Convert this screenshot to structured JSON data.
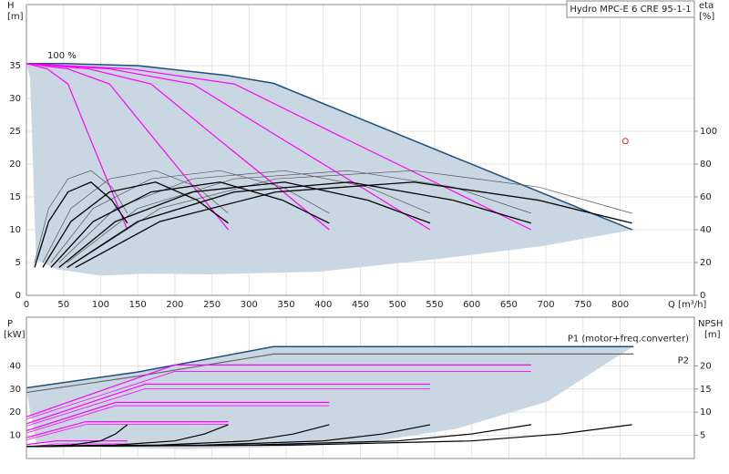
{
  "chart_data": [
    {
      "type": "line",
      "title": "Hydro MPC-E 6 CRE 95-1-1",
      "annotation": "100 %",
      "y_label": "H",
      "y_unit": "[m]",
      "y2_label": "eta",
      "y2_unit": "[%]",
      "x_label": "Q [m³/h]",
      "xlim": [
        0,
        900
      ],
      "xticks": [
        0,
        50,
        100,
        150,
        200,
        250,
        300,
        350,
        400,
        450,
        500,
        550,
        600,
        650,
        700,
        750,
        800
      ],
      "ylim": [
        0,
        44.3
      ],
      "yticks": [
        0,
        5,
        10,
        15,
        20,
        25,
        30,
        35
      ],
      "y2lim": [
        0,
        177.2
      ],
      "y2ticks": [
        0,
        20,
        40,
        60,
        80,
        100
      ],
      "grid": true,
      "area": {
        "color": "#c9d7e3",
        "x": [
          818,
          695,
          566,
          394,
          250,
          161,
          100,
          40,
          13,
          5
        ],
        "values": [
          10,
          7.5,
          5.7,
          3.6,
          3.2,
          3.3,
          3,
          4,
          5.4,
          33
        ]
      },
      "series": [
        {
          "color": "#1d4f7a",
          "width": 1.5,
          "x": [
            0,
            50,
            150,
            270,
            333,
            816
          ],
          "values": [
            35.3,
            35.3,
            35,
            33.5,
            32.3,
            10
          ]
        },
        {
          "color": "#ff00ff",
          "width": 1.2,
          "x": [
            0,
            28,
            56,
            84,
            112,
            136
          ],
          "values": [
            35.3,
            34.5,
            32.2,
            24.4,
            16.7,
            10
          ]
        },
        {
          "color": "#ff00ff",
          "width": 1.2,
          "x": [
            0,
            56,
            112,
            168,
            224,
            272
          ],
          "values": [
            35.3,
            34.5,
            32.2,
            24.4,
            16.7,
            10
          ]
        },
        {
          "color": "#ff00ff",
          "width": 1.2,
          "x": [
            0,
            84,
            168,
            252,
            336,
            408
          ],
          "values": [
            35.3,
            34.5,
            32.2,
            24.4,
            16.7,
            10
          ]
        },
        {
          "color": "#ff00ff",
          "width": 1.2,
          "x": [
            0,
            112,
            224,
            336,
            448,
            544
          ],
          "values": [
            35.3,
            34.5,
            32.2,
            24.4,
            16.7,
            10
          ]
        },
        {
          "color": "#ff00ff",
          "width": 1.2,
          "x": [
            0,
            140,
            280,
            420,
            560,
            680
          ],
          "values": [
            35.3,
            34.5,
            32.2,
            24.4,
            16.7,
            10
          ]
        },
        {
          "color": "#555555",
          "width": 0.7,
          "axis": "y2",
          "x": [
            11,
            30,
            56,
            87,
            115,
            136
          ],
          "values": [
            20,
            53,
            71,
            76,
            66,
            50
          ]
        },
        {
          "color": "#555555",
          "width": 0.7,
          "axis": "y2",
          "x": [
            22,
            60,
            112,
            174,
            230,
            272
          ],
          "values": [
            20,
            53,
            71,
            76,
            66,
            50
          ]
        },
        {
          "color": "#555555",
          "width": 0.7,
          "axis": "y2",
          "x": [
            33,
            90,
            168,
            261,
            345,
            408
          ],
          "values": [
            20,
            53,
            71,
            76,
            66,
            50
          ]
        },
        {
          "color": "#555555",
          "width": 0.7,
          "axis": "y2",
          "x": [
            44,
            120,
            224,
            348,
            460,
            544
          ],
          "values": [
            20,
            53,
            71,
            76,
            66,
            50
          ]
        },
        {
          "color": "#555555",
          "width": 0.7,
          "axis": "y2",
          "x": [
            55,
            150,
            280,
            435,
            575,
            680
          ],
          "values": [
            20,
            53,
            71,
            76,
            66,
            50
          ]
        },
        {
          "color": "#555555",
          "width": 0.7,
          "axis": "y2",
          "x": [
            66,
            180,
            336,
            522,
            690,
            816
          ],
          "values": [
            20,
            53,
            71,
            76,
            66,
            50
          ]
        },
        {
          "color": "#000000",
          "width": 1.3,
          "axis": "y2",
          "x": [
            11,
            30,
            56,
            87,
            115,
            136
          ],
          "values": [
            17,
            45,
            63,
            69,
            58,
            44
          ]
        },
        {
          "color": "#000000",
          "width": 1.3,
          "axis": "y2",
          "x": [
            22,
            60,
            112,
            174,
            230,
            272
          ],
          "values": [
            17,
            45,
            63,
            69,
            58,
            44
          ]
        },
        {
          "color": "#000000",
          "width": 1.3,
          "axis": "y2",
          "x": [
            33,
            90,
            168,
            261,
            345,
            408
          ],
          "values": [
            17,
            45,
            63,
            69,
            58,
            44
          ]
        },
        {
          "color": "#000000",
          "width": 1.3,
          "axis": "y2",
          "x": [
            44,
            120,
            224,
            348,
            460,
            544
          ],
          "values": [
            17,
            45,
            63,
            69,
            58,
            44
          ]
        },
        {
          "color": "#000000",
          "width": 1.3,
          "axis": "y2",
          "x": [
            55,
            150,
            280,
            435,
            575,
            680
          ],
          "values": [
            17,
            45,
            63,
            69,
            58,
            44
          ]
        },
        {
          "color": "#000000",
          "width": 1.3,
          "axis": "y2",
          "x": [
            66,
            180,
            336,
            522,
            690,
            816
          ],
          "values": [
            17,
            45,
            63,
            69,
            58,
            44
          ]
        }
      ],
      "point": {
        "x": 807,
        "y": 23.5,
        "color": "#e03030"
      }
    },
    {
      "type": "line",
      "y_label": "P",
      "y_unit": "[kW]",
      "y2_label": "NPSH",
      "y2_unit": "[m]",
      "xlim": [
        0,
        900
      ],
      "ylim": [
        0,
        61
      ],
      "yticks": [
        10,
        20,
        30,
        40
      ],
      "y2lim": [
        0,
        30.5
      ],
      "y2ticks": [
        5,
        10,
        15,
        20
      ],
      "grid": true,
      "area": {
        "color": "#c9d7e3",
        "x": [
          788,
          702,
          579,
          456,
          333,
          210,
          87,
          13.5,
          5
        ],
        "values": [
          42.4,
          24.6,
          12.8,
          6.8,
          4.9,
          4.1,
          4.9,
          6.8,
          20
        ]
      },
      "series": [
        {
          "name": "P1 (motor+freq.converter)",
          "color": "#1d4f7a",
          "width": 1.5,
          "x": [
            0,
            149,
            333,
            818
          ],
          "values": [
            30.5,
            37.3,
            48.3,
            48.3
          ]
        },
        {
          "name": "P2",
          "color": "#666666",
          "width": 1.2,
          "x": [
            0,
            149,
            333,
            818
          ],
          "values": [
            28.5,
            35.5,
            45.1,
            45.1
          ]
        },
        {
          "color": "#ff00ff",
          "width": 1.2,
          "x": [
            0,
            40,
            136
          ],
          "values": [
            6,
            7.6,
            7.6
          ]
        },
        {
          "color": "#ff00ff",
          "width": 0.8,
          "x": [
            0,
            40,
            136
          ],
          "values": [
            5,
            6.3,
            6.3
          ]
        },
        {
          "color": "#ff00ff",
          "width": 1.2,
          "x": [
            0,
            80,
            272
          ],
          "values": [
            9,
            15.9,
            15.9
          ]
        },
        {
          "color": "#ff00ff",
          "width": 0.8,
          "x": [
            0,
            80,
            272
          ],
          "values": [
            8,
            14.7,
            14.7
          ]
        },
        {
          "color": "#ff00ff",
          "width": 1.2,
          "x": [
            0,
            120,
            408
          ],
          "values": [
            12,
            24.2,
            24.2
          ]
        },
        {
          "color": "#ff00ff",
          "width": 0.8,
          "x": [
            0,
            120,
            408
          ],
          "values": [
            11,
            22.8,
            22.8
          ]
        },
        {
          "color": "#ff00ff",
          "width": 1.2,
          "x": [
            0,
            160,
            544
          ],
          "values": [
            15,
            32.1,
            32.1
          ]
        },
        {
          "color": "#ff00ff",
          "width": 0.8,
          "x": [
            0,
            160,
            544
          ],
          "values": [
            14,
            30.1,
            30.1
          ]
        },
        {
          "color": "#ff00ff",
          "width": 1.2,
          "x": [
            0,
            200,
            680
          ],
          "values": [
            18,
            40.4,
            40.4
          ]
        },
        {
          "color": "#ff00ff",
          "width": 0.8,
          "x": [
            0,
            200,
            680
          ],
          "values": [
            17,
            37.6,
            37.6
          ]
        },
        {
          "color": "#000000",
          "width": 1.2,
          "axis": "y2",
          "x": [
            0,
            60,
            100,
            120,
            136
          ],
          "values": [
            2.6,
            2.9,
            3.8,
            5.3,
            7.3
          ]
        },
        {
          "color": "#000000",
          "width": 1.2,
          "axis": "y2",
          "x": [
            0,
            120,
            200,
            240,
            272
          ],
          "values": [
            2.6,
            2.9,
            3.8,
            5.3,
            7.3
          ]
        },
        {
          "color": "#000000",
          "width": 1.2,
          "axis": "y2",
          "x": [
            0,
            180,
            300,
            360,
            408
          ],
          "values": [
            2.6,
            2.9,
            3.8,
            5.3,
            7.3
          ]
        },
        {
          "color": "#000000",
          "width": 1.2,
          "axis": "y2",
          "x": [
            0,
            240,
            400,
            480,
            544
          ],
          "values": [
            2.6,
            2.9,
            3.8,
            5.3,
            7.3
          ]
        },
        {
          "color": "#000000",
          "width": 1.2,
          "axis": "y2",
          "x": [
            0,
            300,
            500,
            600,
            680
          ],
          "values": [
            2.6,
            2.9,
            3.8,
            5.3,
            7.3
          ]
        },
        {
          "color": "#000000",
          "width": 1.2,
          "axis": "y2",
          "x": [
            0,
            360,
            600,
            720,
            816
          ],
          "values": [
            2.6,
            2.9,
            3.8,
            5.3,
            7.3
          ]
        }
      ]
    }
  ]
}
